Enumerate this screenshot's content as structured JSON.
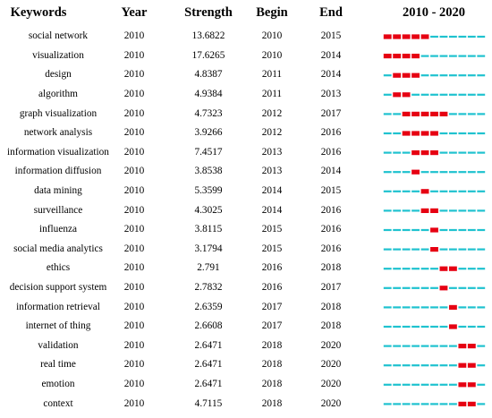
{
  "chart_data": {
    "type": "table",
    "title": "",
    "columns": [
      "Keywords",
      "Year",
      "Strength",
      "Begin",
      "End",
      "2010 - 2020"
    ],
    "timeline": {
      "start": 2010,
      "end": 2020
    },
    "colors": {
      "burst": "#e60012",
      "base": "#1fc2cf"
    },
    "rows": [
      {
        "keyword": "social network",
        "year": "2010",
        "strength": "13.6822",
        "begin": "2010",
        "end": "2015"
      },
      {
        "keyword": "visualization",
        "year": "2010",
        "strength": "17.6265",
        "begin": "2010",
        "end": "2014"
      },
      {
        "keyword": "design",
        "year": "2010",
        "strength": "4.8387",
        "begin": "2011",
        "end": "2014"
      },
      {
        "keyword": "algorithm",
        "year": "2010",
        "strength": "4.9384",
        "begin": "2011",
        "end": "2013"
      },
      {
        "keyword": "graph visualization",
        "year": "2010",
        "strength": "4.7323",
        "begin": "2012",
        "end": "2017"
      },
      {
        "keyword": "network analysis",
        "year": "2010",
        "strength": "3.9266",
        "begin": "2012",
        "end": "2016"
      },
      {
        "keyword": "information visualization",
        "year": "2010",
        "strength": "7.4517",
        "begin": "2013",
        "end": "2016"
      },
      {
        "keyword": "information diffusion",
        "year": "2010",
        "strength": "3.8538",
        "begin": "2013",
        "end": "2014"
      },
      {
        "keyword": "data mining",
        "year": "2010",
        "strength": "5.3599",
        "begin": "2014",
        "end": "2015"
      },
      {
        "keyword": "surveillance",
        "year": "2010",
        "strength": "4.3025",
        "begin": "2014",
        "end": "2016"
      },
      {
        "keyword": "influenza",
        "year": "2010",
        "strength": "3.8115",
        "begin": "2015",
        "end": "2016"
      },
      {
        "keyword": "social media analytics",
        "year": "2010",
        "strength": "3.1794",
        "begin": "2015",
        "end": "2016"
      },
      {
        "keyword": "ethics",
        "year": "2010",
        "strength": "2.791",
        "begin": "2016",
        "end": "2018"
      },
      {
        "keyword": "decision support system",
        "year": "2010",
        "strength": "2.7832",
        "begin": "2016",
        "end": "2017"
      },
      {
        "keyword": "information retrieval",
        "year": "2010",
        "strength": "2.6359",
        "begin": "2017",
        "end": "2018"
      },
      {
        "keyword": "internet of thing",
        "year": "2010",
        "strength": "2.6608",
        "begin": "2017",
        "end": "2018"
      },
      {
        "keyword": "validation",
        "year": "2010",
        "strength": "2.6471",
        "begin": "2018",
        "end": "2020"
      },
      {
        "keyword": "real time",
        "year": "2010",
        "strength": "2.6471",
        "begin": "2018",
        "end": "2020"
      },
      {
        "keyword": "emotion",
        "year": "2010",
        "strength": "2.6471",
        "begin": "2018",
        "end": "2020"
      },
      {
        "keyword": "context",
        "year": "2010",
        "strength": "4.7115",
        "begin": "2018",
        "end": "2020"
      }
    ]
  }
}
